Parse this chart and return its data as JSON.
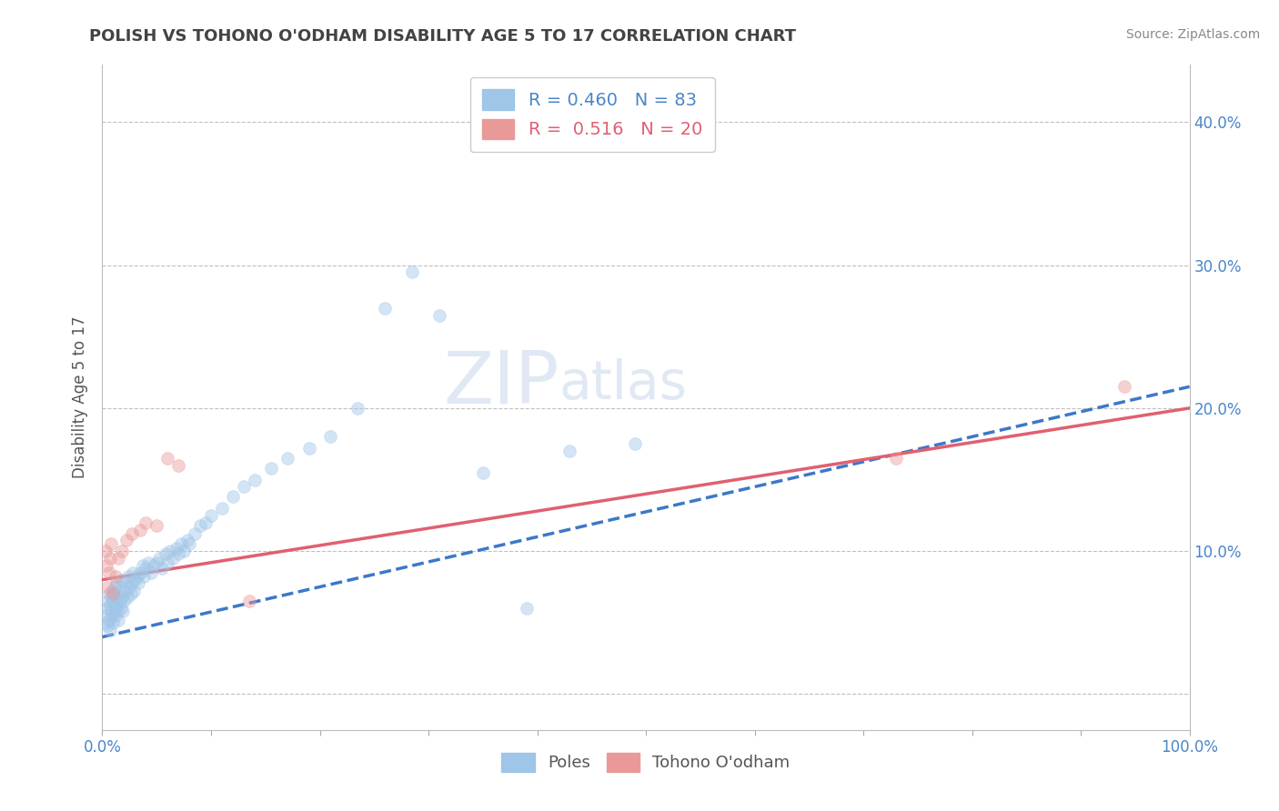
{
  "title": "POLISH VS TOHONO O'ODHAM DISABILITY AGE 5 TO 17 CORRELATION CHART",
  "source": "Source: ZipAtlas.com",
  "ylabel": "Disability Age 5 to 17",
  "legend_labels": [
    "Poles",
    "Tohono O'odham"
  ],
  "legend_r_n": [
    {
      "r": "0.460",
      "n": "83",
      "color": "#4a86c8"
    },
    {
      "r": "0.516",
      "n": "20",
      "color": "#e06070"
    }
  ],
  "blue_color": "#9fc5e8",
  "pink_color": "#ea9999",
  "blue_line_color": "#3c78c8",
  "pink_line_color": "#e06070",
  "background_color": "#ffffff",
  "grid_color": "#c0c0c0",
  "title_color": "#434343",
  "axis_label_color": "#555555",
  "tick_label_color": "#4a86c8",
  "watermark_text": "ZIPatlas",
  "xlim": [
    0.0,
    1.0
  ],
  "ylim": [
    -0.025,
    0.44
  ],
  "xticks": [
    0.0,
    0.1,
    0.2,
    0.3,
    0.4,
    0.5,
    0.6,
    0.7,
    0.8,
    0.9,
    1.0
  ],
  "yticks": [
    0.0,
    0.1,
    0.2,
    0.3,
    0.4
  ],
  "xtick_labels": [
    "0.0%",
    "",
    "",
    "",
    "",
    "",
    "",
    "",
    "",
    "",
    "100.0%"
  ],
  "ytick_labels_right": [
    "",
    "10.0%",
    "20.0%",
    "30.0%",
    "40.0%"
  ],
  "blue_scatter_x": [
    0.002,
    0.003,
    0.004,
    0.005,
    0.005,
    0.006,
    0.006,
    0.007,
    0.007,
    0.008,
    0.008,
    0.009,
    0.009,
    0.01,
    0.01,
    0.011,
    0.011,
    0.012,
    0.012,
    0.013,
    0.013,
    0.014,
    0.015,
    0.015,
    0.016,
    0.016,
    0.017,
    0.018,
    0.018,
    0.019,
    0.02,
    0.021,
    0.022,
    0.023,
    0.024,
    0.025,
    0.026,
    0.027,
    0.028,
    0.029,
    0.03,
    0.032,
    0.033,
    0.035,
    0.037,
    0.038,
    0.04,
    0.042,
    0.045,
    0.047,
    0.05,
    0.052,
    0.055,
    0.058,
    0.06,
    0.062,
    0.065,
    0.068,
    0.07,
    0.072,
    0.075,
    0.078,
    0.08,
    0.085,
    0.09,
    0.095,
    0.1,
    0.11,
    0.12,
    0.13,
    0.14,
    0.155,
    0.17,
    0.19,
    0.21,
    0.235,
    0.26,
    0.285,
    0.31,
    0.35,
    0.39,
    0.43,
    0.49
  ],
  "blue_scatter_y": [
    0.055,
    0.05,
    0.06,
    0.048,
    0.065,
    0.052,
    0.07,
    0.045,
    0.062,
    0.058,
    0.068,
    0.055,
    0.072,
    0.05,
    0.065,
    0.06,
    0.075,
    0.055,
    0.068,
    0.062,
    0.078,
    0.058,
    0.052,
    0.07,
    0.065,
    0.075,
    0.06,
    0.068,
    0.08,
    0.058,
    0.065,
    0.072,
    0.078,
    0.068,
    0.082,
    0.075,
    0.07,
    0.078,
    0.085,
    0.072,
    0.08,
    0.082,
    0.078,
    0.085,
    0.09,
    0.082,
    0.088,
    0.092,
    0.085,
    0.09,
    0.092,
    0.095,
    0.088,
    0.098,
    0.092,
    0.1,
    0.095,
    0.102,
    0.098,
    0.105,
    0.1,
    0.108,
    0.105,
    0.112,
    0.118,
    0.12,
    0.125,
    0.13,
    0.138,
    0.145,
    0.15,
    0.158,
    0.165,
    0.172,
    0.18,
    0.2,
    0.27,
    0.295,
    0.265,
    0.155,
    0.06,
    0.17,
    0.175
  ],
  "pink_scatter_x": [
    0.003,
    0.004,
    0.005,
    0.006,
    0.007,
    0.008,
    0.01,
    0.012,
    0.015,
    0.018,
    0.022,
    0.027,
    0.035,
    0.04,
    0.05,
    0.06,
    0.07,
    0.135,
    0.73,
    0.94
  ],
  "pink_scatter_y": [
    0.1,
    0.09,
    0.075,
    0.085,
    0.095,
    0.105,
    0.07,
    0.082,
    0.095,
    0.1,
    0.108,
    0.112,
    0.115,
    0.12,
    0.118,
    0.165,
    0.16,
    0.065,
    0.165,
    0.215
  ],
  "blue_line_x0": 0.0,
  "blue_line_x1": 1.0,
  "blue_line_y0": 0.04,
  "blue_line_y1": 0.215,
  "pink_line_x0": 0.0,
  "pink_line_x1": 1.0,
  "pink_line_y0": 0.08,
  "pink_line_y1": 0.2,
  "marker_size": 100,
  "marker_alpha": 0.45,
  "line_width": 2.5
}
